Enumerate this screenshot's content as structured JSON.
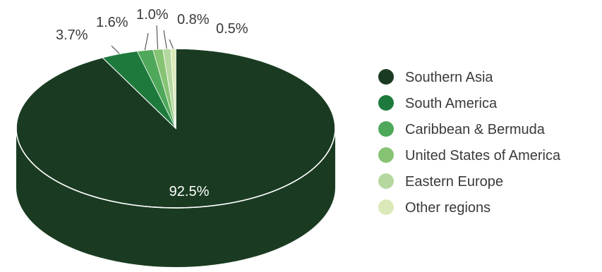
{
  "chart_data": {
    "type": "pie",
    "style": "3d",
    "categories": [
      "Southern Asia",
      "South America",
      "Caribbean & Bermuda",
      "United States of America",
      "Eastern Europe",
      "Other regions"
    ],
    "values": [
      92.5,
      3.7,
      1.6,
      1.0,
      0.8,
      0.5
    ],
    "data_labels": [
      "92.5%",
      "3.7%",
      "1.6%",
      "1.0%",
      "0.8%",
      "0.5%"
    ],
    "colors": [
      "#1a3b21",
      "#1e7a3c",
      "#4fa85a",
      "#86c373",
      "#b5d8a0",
      "#dbe9b8"
    ],
    "legend_position": "right"
  }
}
